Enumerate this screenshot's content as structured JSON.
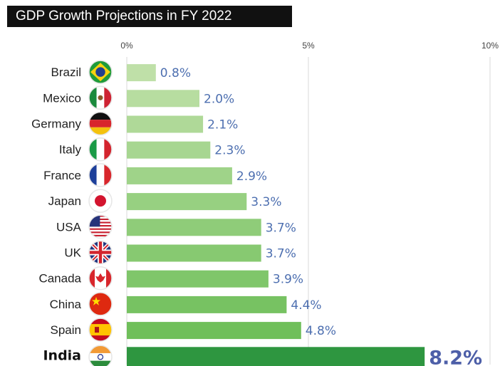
{
  "chart_data": {
    "type": "bar",
    "orientation": "horizontal",
    "title": "GDP Growth Projections in FY 2022",
    "categories": [
      "Brazil",
      "Mexico",
      "Germany",
      "Italy",
      "France",
      "Japan",
      "USA",
      "UK",
      "Canada",
      "China",
      "Spain",
      "India"
    ],
    "values": [
      0.8,
      2.0,
      2.1,
      2.3,
      2.9,
      3.3,
      3.7,
      3.7,
      3.9,
      4.4,
      4.8,
      8.2
    ],
    "value_labels": [
      "0.8%",
      "2.0%",
      "2.1%",
      "2.3%",
      "2.9%",
      "3.3%",
      "3.7%",
      "3.7%",
      "3.9%",
      "4.4%",
      "4.8%",
      "8.2%"
    ],
    "x_ticks": [
      0,
      5,
      10
    ],
    "x_tick_labels": [
      "0%",
      "5%",
      "10%"
    ],
    "xlim": [
      0,
      10
    ],
    "grid": true,
    "highlight": "India",
    "icons": [
      "brazil-flag-icon",
      "mexico-flag-icon",
      "germany-flag-icon",
      "italy-flag-icon",
      "france-flag-icon",
      "japan-flag-icon",
      "usa-flag-icon",
      "uk-flag-icon",
      "canada-flag-icon",
      "china-flag-icon",
      "spain-flag-icon",
      "india-flag-icon"
    ],
    "colors": {
      "bar_start": "#bfe0a8",
      "bar_end": "#6fbf5a",
      "highlight_bar": "#2e9640",
      "value_text": "#4d6fb0",
      "title_bg": "#111111",
      "title_text": "#ffffff"
    }
  }
}
